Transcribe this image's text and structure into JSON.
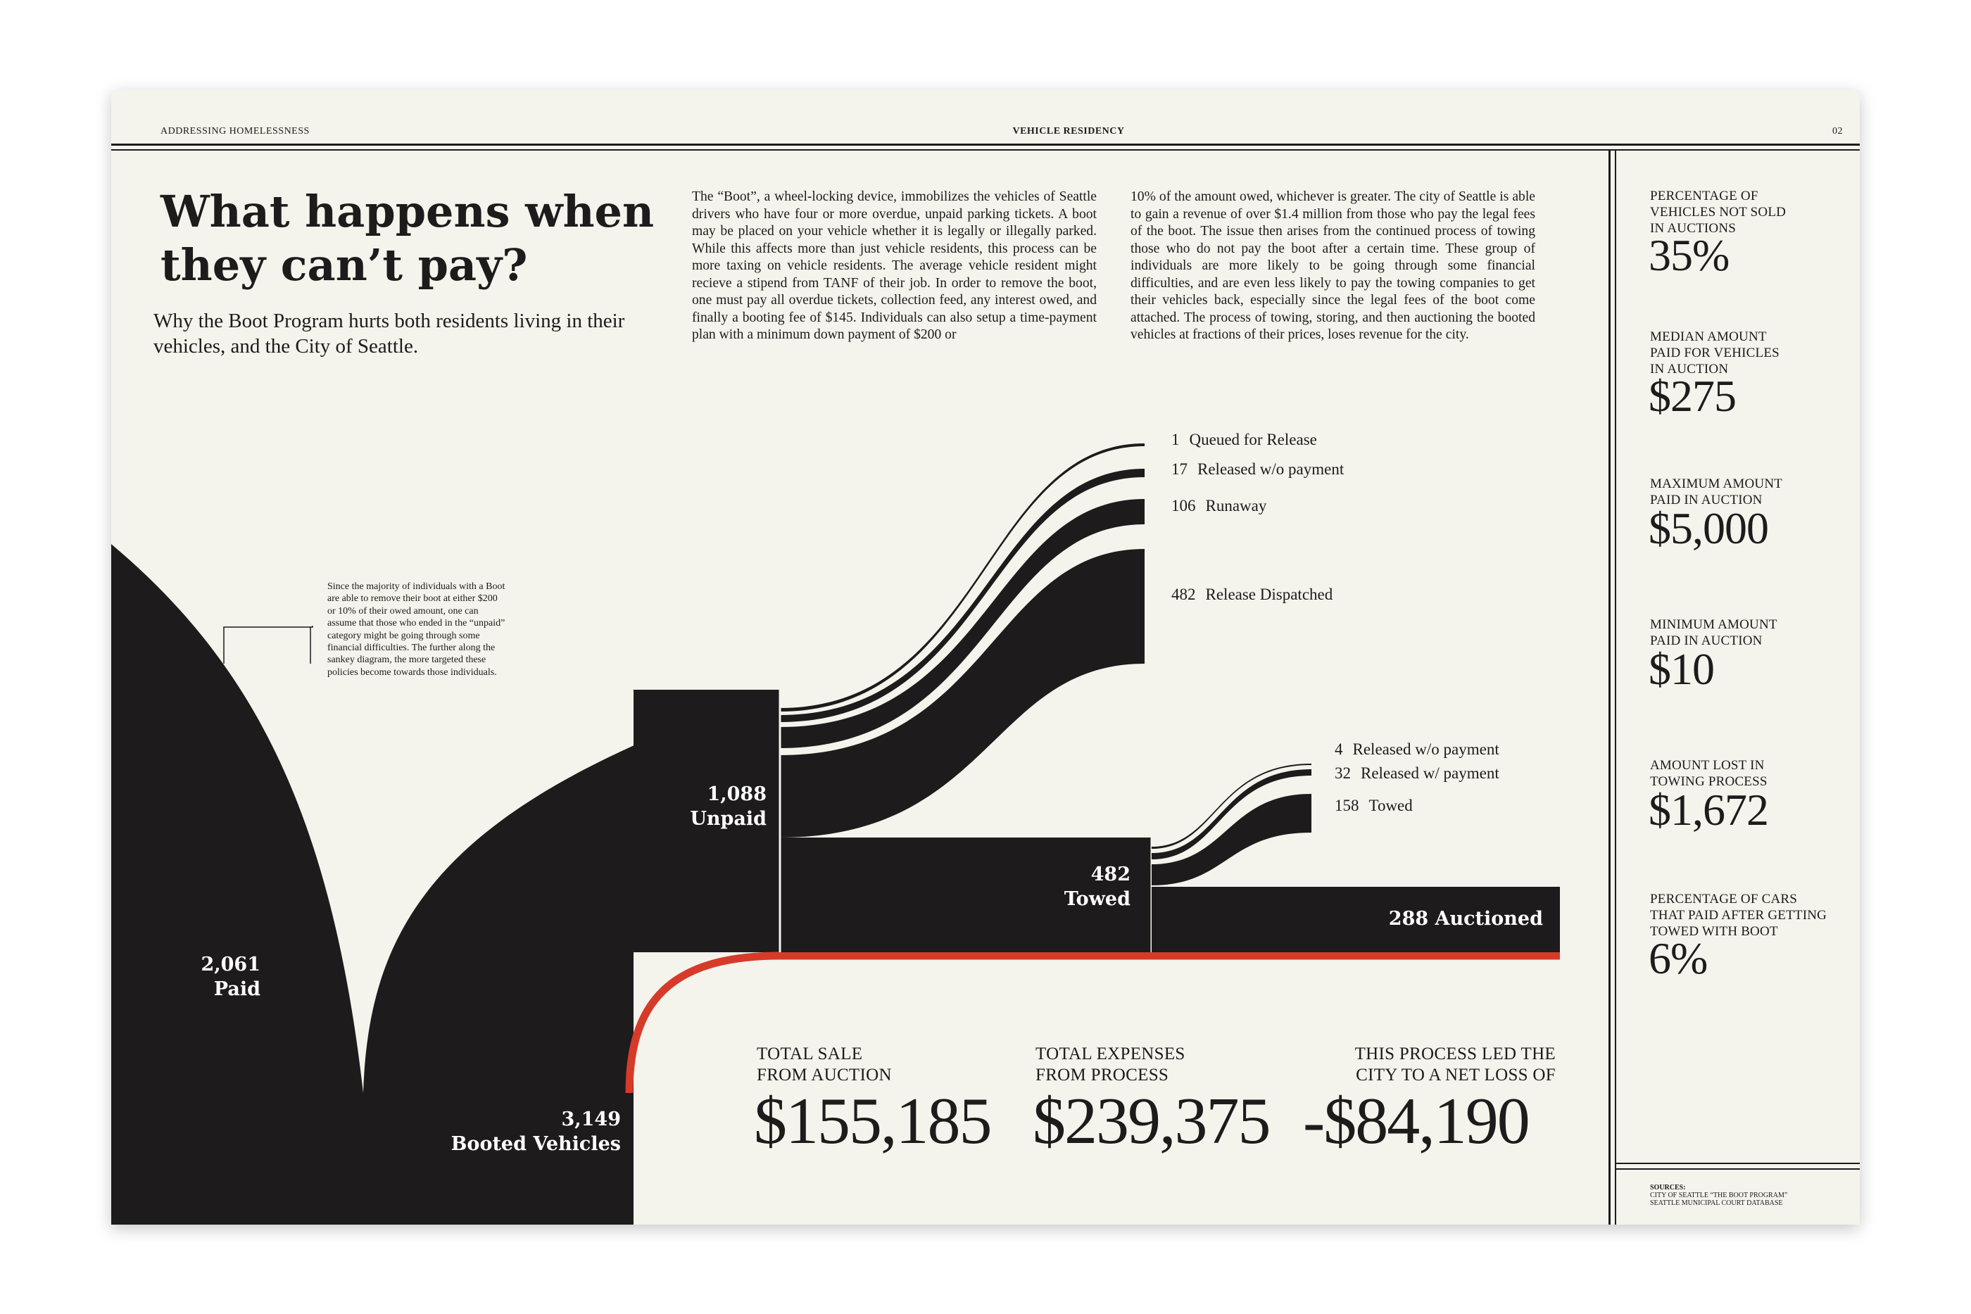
{
  "header": {
    "section": "ADDRESSING HOMELESSNESS",
    "topic": "VEHICLE RESIDENCY",
    "page_number": "02"
  },
  "article": {
    "title_line1": "What happens when",
    "title_line2": "they can’t pay?",
    "subtitle": "Why the Boot Program hurts both residents living in their vehicles, and the City of Seattle.",
    "body_col1": "The “Boot”, a wheel-locking device, immobilizes the vehicles of Seattle drivers who have four or more overdue, unpaid parking tickets. A boot may be placed on your vehicle whether it is legally or illegally parked. While this affects more than just vehicle residents, this process can be more taxing on vehicle residents. The average vehicle resident might recieve a stipend from TANF of their job. In order to remove the boot, one must pay all overdue tickets, collection feed, any interest owed, and finally a booting fee of $145. Individuals can also setup a time-payment plan with a minimum down payment of $200 or",
    "body_col2": "10% of the amount owed, whichever is greater. The city of Seattle is able to gain a revenue of over $1.4 million from those who pay the legal fees of the boot. The issue then arises from the continued process of towing those who do not pay the boot after a certain time. These group of individuals are more likely to be going through some financial difficulties, and are even less likely to pay the towing companies to get their vehicles back, especially since the legal fees of the boot come attached. The process of towing, storing, and then auctioning the booted vehicles at fractions of their prices, loses revenue for the city.",
    "side_note": "Since the majority of individuals with a Boot are able to remove their boot at either $200 or 10% of their owed amount, one can assume that those who ended in the “unpaid” category might be going through some financial difficulties. The further along the sankey diagram, the more targeted these policies become towards those individuals."
  },
  "sankey": {
    "nodes": {
      "booted": {
        "value": "3,149",
        "label": "Booted Vehicles"
      },
      "paid": {
        "value": "2,061",
        "label": "Paid"
      },
      "unpaid": {
        "value": "1,088",
        "label": "Unpaid"
      },
      "towed": {
        "value": "482",
        "label": "Towed"
      },
      "auctioned": {
        "value": "288",
        "label": "Auctioned",
        "text": "288 Auctioned"
      }
    },
    "unpaid_outcomes": [
      {
        "value": "1",
        "label": "Queued for Release"
      },
      {
        "value": "17",
        "label": "Released w/o payment"
      },
      {
        "value": "106",
        "label": "Runaway"
      },
      {
        "value": "482",
        "label": "Release Dispatched"
      }
    ],
    "towed_outcomes": [
      {
        "value": "4",
        "label": "Released w/o payment"
      },
      {
        "value": "32",
        "label": "Released w/ payment"
      },
      {
        "value": "158",
        "label": "Towed"
      }
    ],
    "colors": {
      "flow": "#1d1b1b",
      "loss": "#d63b2a",
      "paper": "#f4f3ec"
    }
  },
  "totals": {
    "sale": {
      "label_line1": "TOTAL SALE",
      "label_line2": "FROM AUCTION",
      "value": "$155,185"
    },
    "expenses": {
      "label_line1": "TOTAL EXPENSES",
      "label_line2": "FROM PROCESS",
      "value": "$239,375"
    },
    "net": {
      "label_line1": "THIS PROCESS LED THE",
      "label_line2": "CITY TO A NET LOSS OF",
      "value": "-$84,190"
    }
  },
  "stats": [
    {
      "label": [
        "PERCENTAGE OF",
        "VEHICLES NOT SOLD",
        "IN AUCTIONS"
      ],
      "value": "35%"
    },
    {
      "label": [
        "MEDIAN AMOUNT",
        "PAID FOR VEHICLES",
        "IN AUCTION"
      ],
      "value": "$275"
    },
    {
      "label": [
        "MAXIMUM AMOUNT",
        "PAID IN AUCTION"
      ],
      "value": "$5,000"
    },
    {
      "label": [
        "MINIMUM AMOUNT",
        "PAID IN AUCTION"
      ],
      "value": "$10"
    },
    {
      "label": [
        "AMOUNT LOST IN",
        "TOWING PROCESS"
      ],
      "value": "$1,672"
    },
    {
      "label": [
        "PERCENTAGE OF CARS",
        "THAT PAID AFTER GETTING",
        "TOWED WITH BOOT"
      ],
      "value": "6%"
    }
  ],
  "sources": {
    "title": "SOURCES:",
    "items": [
      "CITY OF SEATTLE “THE BOOT PROGRAM”",
      "SEATTLE MUNICIPAL COURT DATABASE"
    ]
  }
}
